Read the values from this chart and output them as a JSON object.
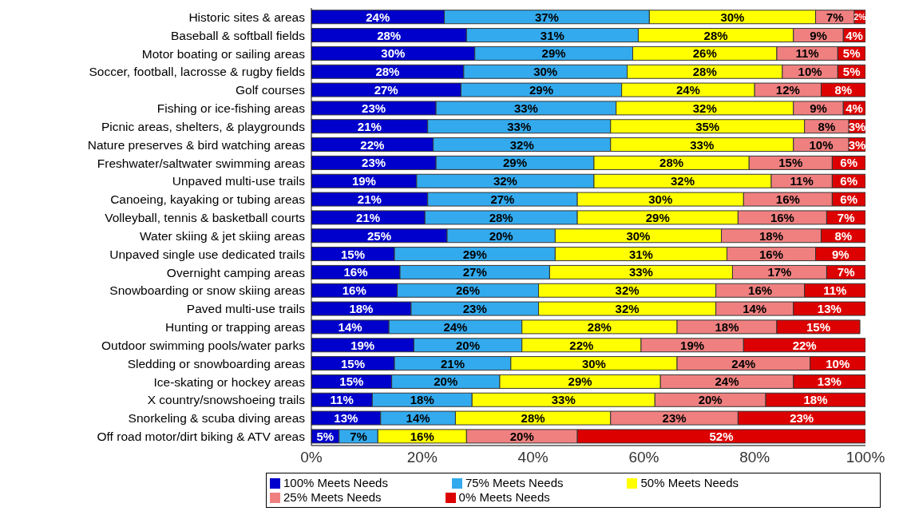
{
  "chart_data": {
    "type": "bar",
    "orientation": "horizontal",
    "stacked": true,
    "categories": [
      "Historic sites & areas",
      "Baseball & softball fields",
      "Motor boating or sailing areas",
      "Soccer, football, lacrosse & rugby fields",
      "Golf courses",
      "Fishing or ice-fishing areas",
      "Picnic areas, shelters, & playgrounds",
      "Nature preserves & bird watching areas",
      "Freshwater/saltwater swimming areas",
      "Unpaved multi-use trails",
      "Canoeing, kayaking or tubing areas",
      "Volleyball, tennis & basketball courts",
      "Water skiing & jet skiing areas",
      "Unpaved single use dedicated trails",
      "Overnight camping areas",
      "Snowboarding or snow skiing areas",
      "Paved multi-use trails",
      "Hunting or trapping areas",
      "Outdoor swimming pools/water parks",
      "Sledding or snowboarding areas",
      "Ice-skating or hockey areas",
      "X country/snowshoeing trails",
      "Snorkeling & scuba diving areas",
      "Off road motor/dirt biking & ATV areas"
    ],
    "series": [
      {
        "name": "100% Meets Needs",
        "color": "#0000cc",
        "values": [
          24,
          28,
          29.5,
          27.5,
          27,
          22.5,
          21,
          22,
          22.5,
          19,
          21,
          20.5,
          24.5,
          15,
          16,
          15.5,
          18,
          14,
          18.5,
          15,
          14.5,
          11,
          12.5,
          5
        ],
        "value_labels": [
          "24%",
          "28%",
          "30%",
          "28%",
          "27%",
          "23%",
          "21%",
          "22%",
          "23%",
          "19%",
          "21%",
          "21%",
          "25%",
          "15%",
          "16%",
          "16%",
          "18%",
          "14%",
          "19%",
          "15%",
          "15%",
          "11%",
          "13%",
          "5%"
        ]
      },
      {
        "name": "75% Meets Needs",
        "color": "#33aaee",
        "values": [
          37,
          31,
          28.5,
          29.5,
          29,
          32.5,
          33,
          32,
          28.5,
          32,
          27,
          27.5,
          19.5,
          29,
          27,
          25.5,
          23,
          24,
          19.5,
          21,
          19.5,
          18,
          13.5,
          7
        ],
        "value_labels": [
          "37%",
          "31%",
          "29%",
          "30%",
          "29%",
          "33%",
          "33%",
          "32%",
          "29%",
          "32%",
          "27%",
          "28%",
          "20%",
          "29%",
          "27%",
          "26%",
          "23%",
          "24%",
          "20%",
          "21%",
          "20%",
          "18%",
          "14%",
          "7%"
        ]
      },
      {
        "name": "50% Meets Needs",
        "color": "#ffff00",
        "values": [
          30,
          28,
          26,
          28,
          24,
          32,
          35,
          33,
          28,
          32,
          30,
          29,
          30,
          31,
          33,
          32,
          32,
          28,
          21.5,
          30,
          29,
          33,
          28,
          16
        ],
        "value_labels": [
          "30%",
          "28%",
          "26%",
          "28%",
          "24%",
          "32%",
          "35%",
          "33%",
          "28%",
          "32%",
          "30%",
          "29%",
          "30%",
          "31%",
          "33%",
          "32%",
          "32%",
          "28%",
          "22%",
          "30%",
          "29%",
          "33%",
          "28%",
          "16%"
        ]
      },
      {
        "name": "25% Meets Needs",
        "color": "#f08080",
        "values": [
          7,
          9,
          11,
          10,
          12,
          9,
          8,
          10,
          15,
          11,
          16,
          16,
          18,
          16,
          17,
          16,
          14,
          18,
          18.5,
          24,
          24,
          20,
          23,
          20
        ],
        "value_labels": [
          "7%",
          "9%",
          "11%",
          "10%",
          "12%",
          "9%",
          "8%",
          "10%",
          "15%",
          "11%",
          "16%",
          "16%",
          "18%",
          "16%",
          "17%",
          "16%",
          "14%",
          "18%",
          "19%",
          "24%",
          "24%",
          "20%",
          "23%",
          "20%"
        ]
      },
      {
        "name": "0% Meets Needs",
        "color": "#dd0000",
        "values": [
          2,
          4,
          5,
          5,
          8,
          4,
          3,
          3,
          6,
          6,
          6,
          7,
          8,
          9,
          7,
          11,
          13,
          15,
          22,
          10,
          13,
          18,
          23,
          52
        ],
        "value_labels": [
          "2%",
          "4%",
          "5%",
          "5%",
          "8%",
          "4%",
          "3%",
          "3%",
          "6%",
          "6%",
          "6%",
          "7%",
          "8%",
          "9%",
          "7%",
          "11%",
          "13%",
          "15%",
          "22%",
          "10%",
          "13%",
          "18%",
          "23%",
          "52%"
        ]
      }
    ],
    "xlim": [
      0,
      100
    ],
    "xticks": [
      {
        "value": 0,
        "label": "0%"
      },
      {
        "value": 20,
        "label": "20%"
      },
      {
        "value": 40,
        "label": "40%"
      },
      {
        "value": 60,
        "label": "60%"
      },
      {
        "value": 80,
        "label": "80%"
      },
      {
        "value": 100,
        "label": "100%"
      }
    ],
    "grid": false,
    "legend": "bottom"
  }
}
